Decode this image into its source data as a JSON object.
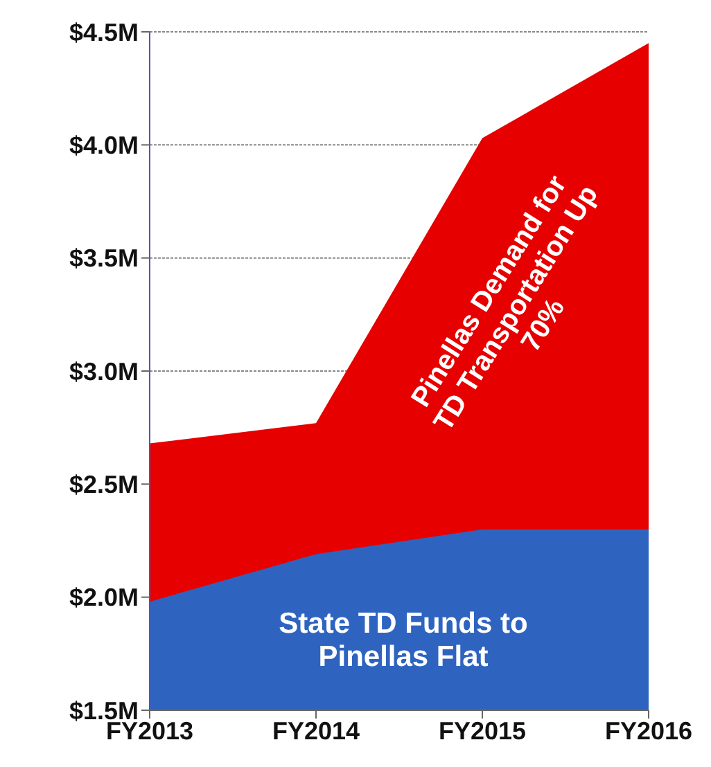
{
  "chart_data": {
    "type": "area",
    "categories": [
      "FY2013",
      "FY2014",
      "FY2015",
      "FY2016"
    ],
    "series": [
      {
        "color": "#e60000",
        "values": [
          2.68,
          2.77,
          4.03,
          4.45
        ]
      },
      {
        "color": "#2e64c0",
        "values": [
          1.98,
          2.19,
          2.3,
          2.3
        ]
      }
    ],
    "ylim": [
      1.5,
      4.5
    ],
    "yticks": [
      {
        "value": 1.5,
        "label": "$1.5M"
      },
      {
        "value": 2,
        "label": "$2.0M"
      },
      {
        "value": 2.5,
        "label": "$2.5M"
      },
      {
        "value": 3,
        "label": "$3.0M"
      },
      {
        "value": 3.5,
        "label": "$3.5M"
      },
      {
        "value": 4,
        "label": "$4.0M"
      },
      {
        "value": 4.5,
        "label": "$4.5M"
      }
    ],
    "grid": "y",
    "annotations": [
      "Pinellas Demand for\nTD Transportation Up\n70%",
      "State TD Funds to\nPinellas Flat"
    ]
  }
}
